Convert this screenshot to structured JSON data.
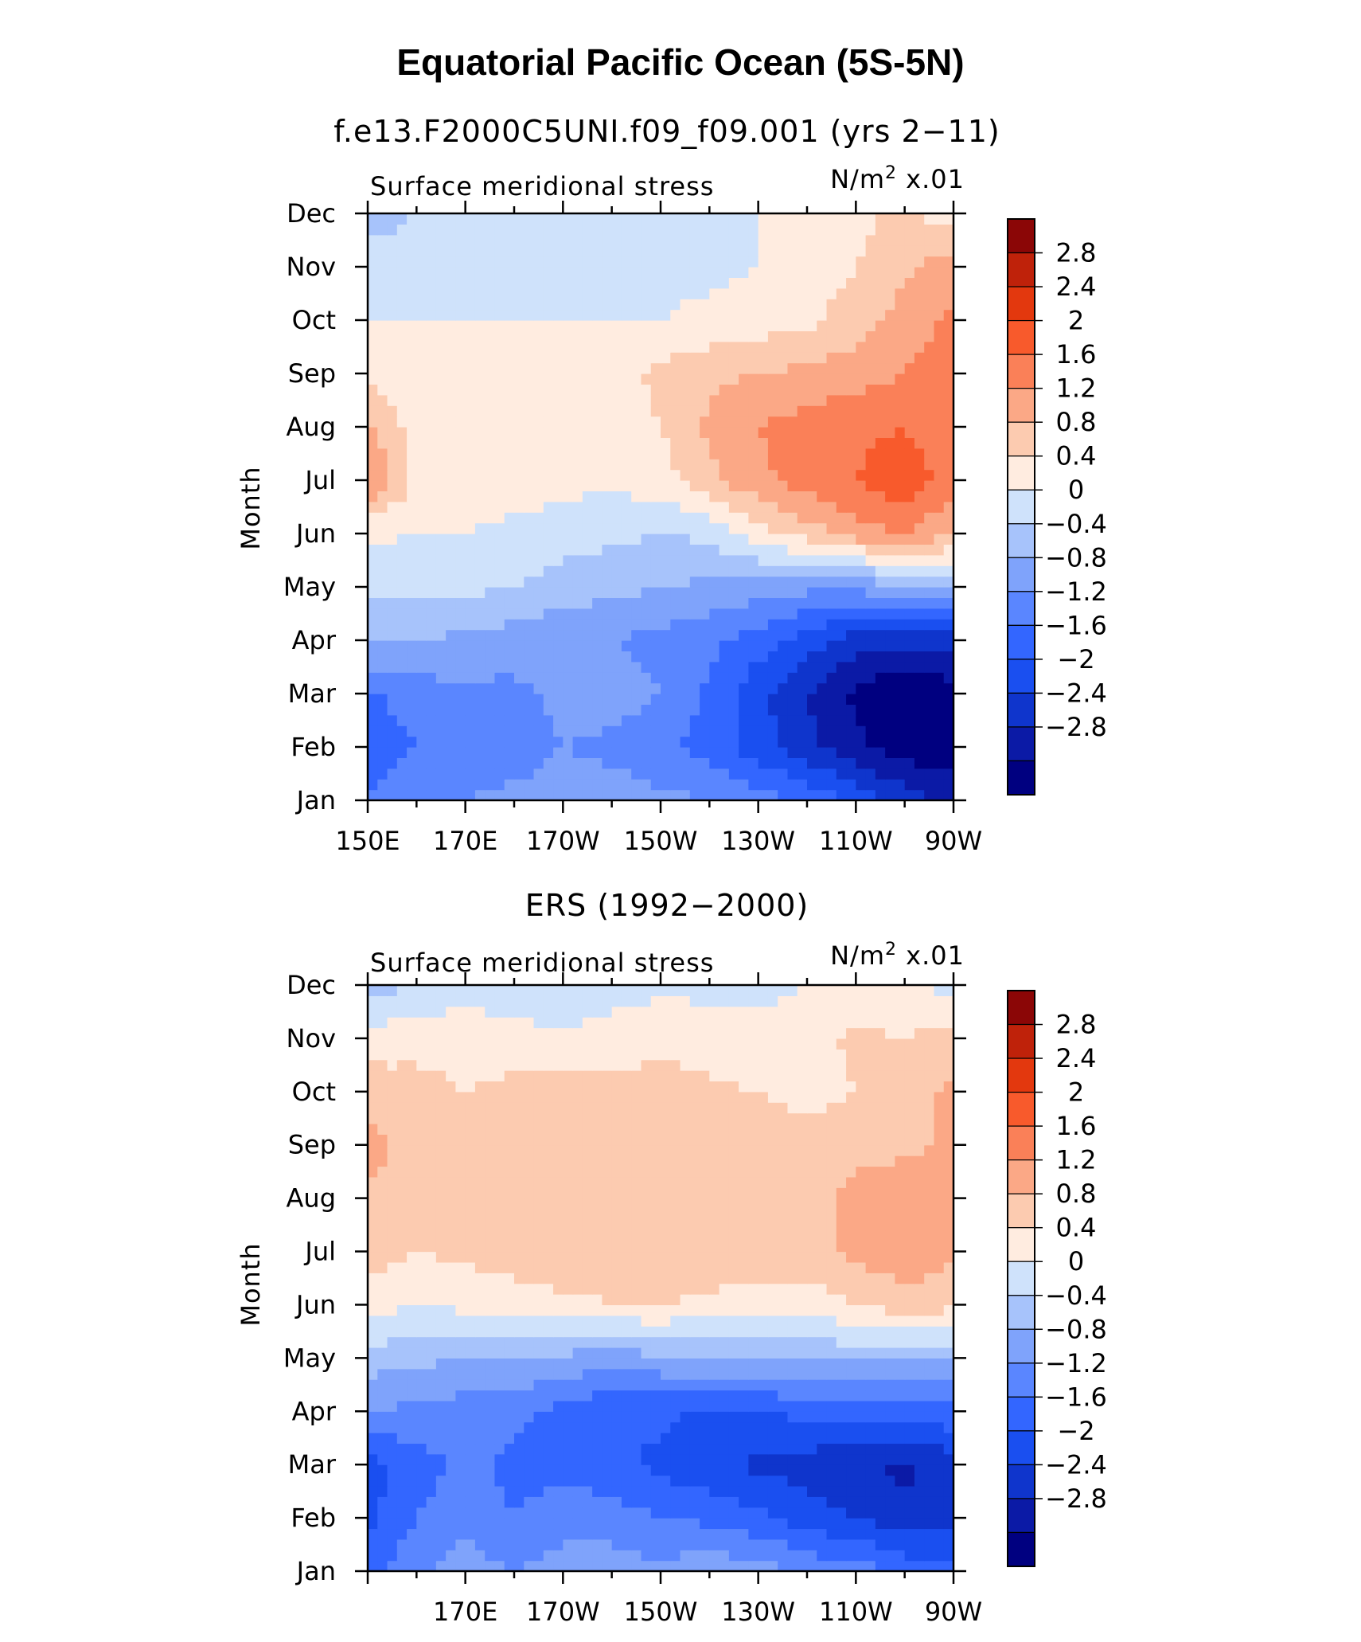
{
  "figure": {
    "title": "Equatorial Pacific Ocean (5S-5N)"
  },
  "colors": {
    "levels": [
      "#000080",
      "#0b1aa6",
      "#0f35cc",
      "#1a4ff0",
      "#3366ff",
      "#5a86ff",
      "#7fa3fb",
      "#a7c3fb",
      "#cfe2fb",
      "#ffece0",
      "#fccbb0",
      "#fba886",
      "#fa8058",
      "#f85a2c",
      "#e3380e",
      "#bf220a",
      "#8b0606"
    ],
    "frame": "#000000"
  },
  "chart_data": [
    {
      "type": "heatmap",
      "subtitle": "f.e13.F2000C5UNI.f09_f09.001 (yrs 2−11)",
      "left_label": "Surface  meridional  stress",
      "right_label_prefix": "N/m",
      "right_label_exp": "2",
      "right_label_suffix": " x.01",
      "ylabel": "Month",
      "x_ticks": [
        "150E",
        "170E",
        "170W",
        "150W",
        "130W",
        "110W",
        "90W"
      ],
      "y_ticks": [
        "Jan",
        "Feb",
        "Mar",
        "Apr",
        "May",
        "Jun",
        "Jul",
        "Aug",
        "Sep",
        "Oct",
        "Nov",
        "Dec"
      ],
      "xlim": [
        150,
        270
      ],
      "colorbar_labels": [
        "2.8",
        "2.4",
        "2",
        "1.6",
        "1.2",
        "0.8",
        "0.4",
        "0",
        "−0.4",
        "−0.8",
        "−1.2",
        "−1.6",
        "−2",
        "−2.4",
        "−2.8"
      ],
      "lon": [
        150,
        160,
        170,
        180,
        190,
        200,
        210,
        220,
        230,
        240,
        250,
        260,
        270
      ],
      "values": [
        [
          -1.2,
          -0.9,
          -0.8,
          -0.7,
          -0.6,
          -0.6,
          -0.7,
          -0.8,
          -1.0,
          -1.3,
          -1.7,
          -2.2,
          -2.5
        ],
        [
          -1.4,
          -1.2,
          -1.1,
          -1.0,
          -0.8,
          -0.9,
          -1.1,
          -1.4,
          -1.8,
          -2.3,
          -2.7,
          -3.0,
          -3.1
        ],
        [
          -1.3,
          -1.0,
          -0.9,
          -0.9,
          -0.7,
          -0.6,
          -0.8,
          -1.3,
          -1.9,
          -2.4,
          -2.9,
          -3.2,
          -3.0
        ],
        [
          -0.3,
          -0.4,
          -0.5,
          -0.6,
          -0.7,
          -0.8,
          -0.9,
          -1.1,
          -1.4,
          -1.8,
          -2.2,
          -2.3,
          -2.2
        ],
        [
          0.1,
          0.1,
          0.1,
          0.0,
          -0.2,
          -0.3,
          -0.4,
          -0.5,
          -0.6,
          -0.7,
          -0.7,
          -0.5,
          -0.2
        ],
        [
          0.5,
          0.4,
          0.4,
          0.3,
          0.2,
          0.1,
          0.0,
          0.1,
          0.6,
          1.0,
          1.4,
          1.6,
          1.2
        ],
        [
          1.6,
          0.7,
          0.6,
          0.6,
          0.5,
          0.5,
          0.6,
          1.1,
          1.5,
          1.8,
          2.0,
          2.3,
          1.8
        ],
        [
          1.3,
          0.6,
          0.5,
          0.5,
          0.5,
          0.6,
          0.8,
          1.3,
          1.6,
          1.8,
          1.9,
          2.0,
          1.7
        ],
        [
          0.7,
          0.4,
          0.4,
          0.4,
          0.5,
          0.6,
          0.9,
          1.1,
          1.2,
          1.3,
          1.4,
          1.6,
          1.8
        ],
        [
          0.4,
          0.4,
          0.4,
          0.4,
          0.4,
          0.4,
          0.4,
          0.5,
          0.6,
          0.7,
          1.0,
          1.4,
          1.7
        ],
        [
          0.2,
          0.2,
          0.2,
          0.2,
          0.3,
          0.3,
          0.3,
          0.3,
          0.4,
          0.6,
          0.8,
          1.1,
          1.4
        ],
        [
          -0.2,
          0.0,
          0.2,
          0.2,
          0.3,
          0.3,
          0.3,
          0.3,
          0.4,
          0.5,
          0.7,
          0.9,
          0.6
        ]
      ]
    },
    {
      "type": "heatmap",
      "subtitle": "ERS (1992−2000)",
      "left_label": "Surface  meridional  stress",
      "right_label_prefix": "N/m",
      "right_label_exp": "2",
      "right_label_suffix": " x.01",
      "ylabel": "Month",
      "x_ticks": [
        "170E",
        "170W",
        "150W",
        "130W",
        "110W",
        "90W"
      ],
      "y_ticks": [
        "Jan",
        "Feb",
        "Mar",
        "Apr",
        "May",
        "Jun",
        "Jul",
        "Aug",
        "Sep",
        "Oct",
        "Nov",
        "Dec"
      ],
      "xlim": [
        150,
        270
      ],
      "colorbar_labels": [
        "2.8",
        "2.4",
        "2",
        "1.6",
        "1.2",
        "0.8",
        "0.4",
        "0",
        "−0.4",
        "−0.8",
        "−1.2",
        "−1.6",
        "−2",
        "−2.4",
        "−2.8"
      ],
      "lon": [
        150,
        160,
        170,
        180,
        190,
        200,
        210,
        220,
        230,
        240,
        250,
        260,
        270
      ],
      "values": [
        [
          -1.3,
          -0.9,
          -0.6,
          -0.8,
          -0.6,
          -0.6,
          -0.7,
          -0.5,
          -0.6,
          -0.9,
          -1.0,
          -1.3,
          -1.5
        ],
        [
          -1.7,
          -1.2,
          -0.9,
          -1.2,
          -1.0,
          -1.0,
          -1.2,
          -1.3,
          -1.5,
          -1.8,
          -2.0,
          -2.3,
          -2.1
        ],
        [
          -1.8,
          -1.4,
          -1.1,
          -1.3,
          -1.3,
          -1.5,
          -1.7,
          -1.9,
          -2.1,
          -2.2,
          -2.3,
          -2.5,
          -2.2
        ],
        [
          -0.8,
          -0.9,
          -1.0,
          -1.1,
          -1.3,
          -1.6,
          -1.5,
          -1.7,
          -1.6,
          -1.5,
          -1.4,
          -1.5,
          -1.3
        ],
        [
          -0.2,
          -0.3,
          -0.4,
          -0.4,
          -0.5,
          -0.6,
          -0.5,
          -0.4,
          -0.4,
          -0.3,
          -0.3,
          -0.4,
          -0.3
        ],
        [
          0.6,
          0.4,
          0.5,
          0.6,
          0.7,
          0.8,
          0.8,
          0.7,
          0.6,
          0.6,
          0.8,
          1.0,
          0.9
        ],
        [
          1.0,
          0.8,
          0.9,
          1.0,
          1.1,
          1.0,
          1.1,
          1.1,
          1.1,
          1.0,
          1.3,
          1.5,
          1.3
        ],
        [
          1.1,
          0.9,
          0.9,
          1.1,
          1.2,
          1.1,
          1.2,
          1.1,
          1.1,
          1.0,
          1.4,
          1.5,
          1.4
        ],
        [
          1.4,
          1.0,
          0.9,
          1.0,
          1.1,
          1.0,
          1.1,
          1.0,
          1.0,
          0.9,
          1.0,
          1.1,
          1.3
        ],
        [
          1.0,
          0.9,
          0.8,
          0.9,
          1.0,
          0.9,
          1.0,
          0.9,
          0.8,
          0.7,
          0.8,
          1.0,
          1.3
        ],
        [
          0.6,
          0.7,
          0.7,
          0.6,
          0.5,
          0.6,
          0.7,
          0.6,
          0.5,
          0.6,
          0.9,
          0.8,
          1.0
        ],
        [
          -0.2,
          0.0,
          0.2,
          0.1,
          0.0,
          0.2,
          0.3,
          0.3,
          0.3,
          0.4,
          0.5,
          0.4,
          0.3
        ]
      ]
    }
  ]
}
